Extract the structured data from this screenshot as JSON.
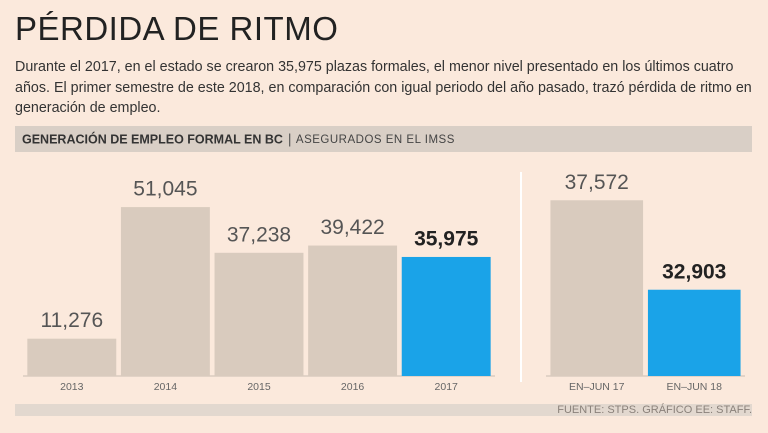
{
  "title": "PÉRDIDA DE RITMO",
  "description": "Durante el 2017, en el estado se crearon 35,975 plazas formales, el menor nivel presentado en los últimos cuatro años. El primer semestre de este 2018, en comparación con igual periodo del año pasado, trazó pérdida de ritmo en generación de empleo.",
  "section_title": "GENERACIÓN DE EMPLEO FORMAL EN BC",
  "section_subtitle": "ASEGURADOS EN EL IMSS",
  "source": "FUENTE: STPS. GRÁFICO EE: STAFF.",
  "chart_data": [
    {
      "type": "bar",
      "categories": [
        "2013",
        "2014",
        "2015",
        "2016",
        "2017"
      ],
      "values": [
        11276,
        51045,
        37238,
        39422,
        35975
      ],
      "value_labels": [
        "11,276",
        "51,045",
        "37,238",
        "39,422",
        "35,975"
      ],
      "color": "#d9cbbe",
      "highlight": {
        "index": 4,
        "color": "#1aa3e8"
      },
      "ylim": [
        0,
        55000
      ]
    },
    {
      "type": "bar",
      "categories": [
        "EN–JUN 17",
        "EN–JUN 18"
      ],
      "values": [
        37572,
        32903
      ],
      "value_labels": [
        "37,572",
        "32,903"
      ],
      "color": "#d9cbbe",
      "highlight": {
        "index": 1,
        "color": "#1aa3e8"
      },
      "ylim": [
        28400,
        37900
      ]
    }
  ]
}
